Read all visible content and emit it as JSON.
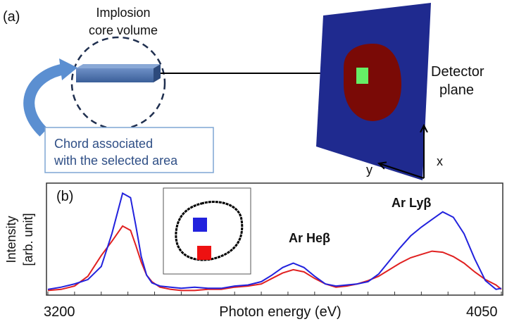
{
  "panel_a": {
    "label": "(a)",
    "core_label_line1": "Implosion",
    "core_label_line2": "core volume",
    "chord_label_line1": "Chord associated",
    "chord_label_line2": "with the selected area",
    "detector_label_line1": "Detector",
    "detector_label_line2": "plane",
    "axis_x": "x",
    "axis_y": "y"
  },
  "panel_b": {
    "label": "(b)",
    "peak_he": "Ar Heβ",
    "peak_ly": "Ar Lyβ"
  },
  "colors": {
    "detector": "#1f2a8f",
    "spot": "#7a0a06",
    "selection": "#66ee66",
    "blue_series": "#2222dd",
    "red_series": "#e02020",
    "chord_text": "#2f4f86"
  },
  "chart_data": {
    "type": "line",
    "title": "",
    "xlabel": "Photon energy (eV)",
    "ylabel": "Intensity",
    "ylabel_unit": "[arb. unit]",
    "xlim": [
      3200,
      4050
    ],
    "x_tick_labels": [
      "3200",
      "4050"
    ],
    "ylim": [
      0,
      1
    ],
    "x": [
      3200,
      3225,
      3250,
      3275,
      3300,
      3320,
      3340,
      3355,
      3365,
      3375,
      3385,
      3395,
      3410,
      3430,
      3450,
      3475,
      3500,
      3525,
      3550,
      3575,
      3600,
      3620,
      3640,
      3660,
      3680,
      3700,
      3720,
      3740,
      3760,
      3780,
      3800,
      3820,
      3840,
      3860,
      3880,
      3900,
      3920,
      3940,
      3960,
      3980,
      4000,
      4020,
      4040,
      4050
    ],
    "series": [
      {
        "name": "blue",
        "color": "#2222dd",
        "values": [
          0.04,
          0.06,
          0.09,
          0.13,
          0.25,
          0.55,
          0.92,
          0.88,
          0.62,
          0.34,
          0.17,
          0.1,
          0.07,
          0.06,
          0.05,
          0.06,
          0.05,
          0.05,
          0.07,
          0.08,
          0.11,
          0.17,
          0.24,
          0.28,
          0.24,
          0.16,
          0.09,
          0.07,
          0.08,
          0.09,
          0.11,
          0.18,
          0.3,
          0.42,
          0.53,
          0.61,
          0.68,
          0.75,
          0.7,
          0.55,
          0.32,
          0.12,
          0.04,
          0.05
        ]
      },
      {
        "name": "red",
        "color": "#e02020",
        "values": [
          0.03,
          0.04,
          0.07,
          0.16,
          0.35,
          0.48,
          0.62,
          0.58,
          0.44,
          0.29,
          0.17,
          0.11,
          0.06,
          0.04,
          0.03,
          0.03,
          0.04,
          0.04,
          0.06,
          0.07,
          0.09,
          0.14,
          0.19,
          0.22,
          0.2,
          0.14,
          0.09,
          0.06,
          0.07,
          0.09,
          0.12,
          0.16,
          0.22,
          0.28,
          0.33,
          0.36,
          0.39,
          0.38,
          0.34,
          0.28,
          0.2,
          0.13,
          0.08,
          0.04
        ]
      }
    ],
    "annotations": [
      "Ar Heβ",
      "Ar Lyβ"
    ]
  }
}
